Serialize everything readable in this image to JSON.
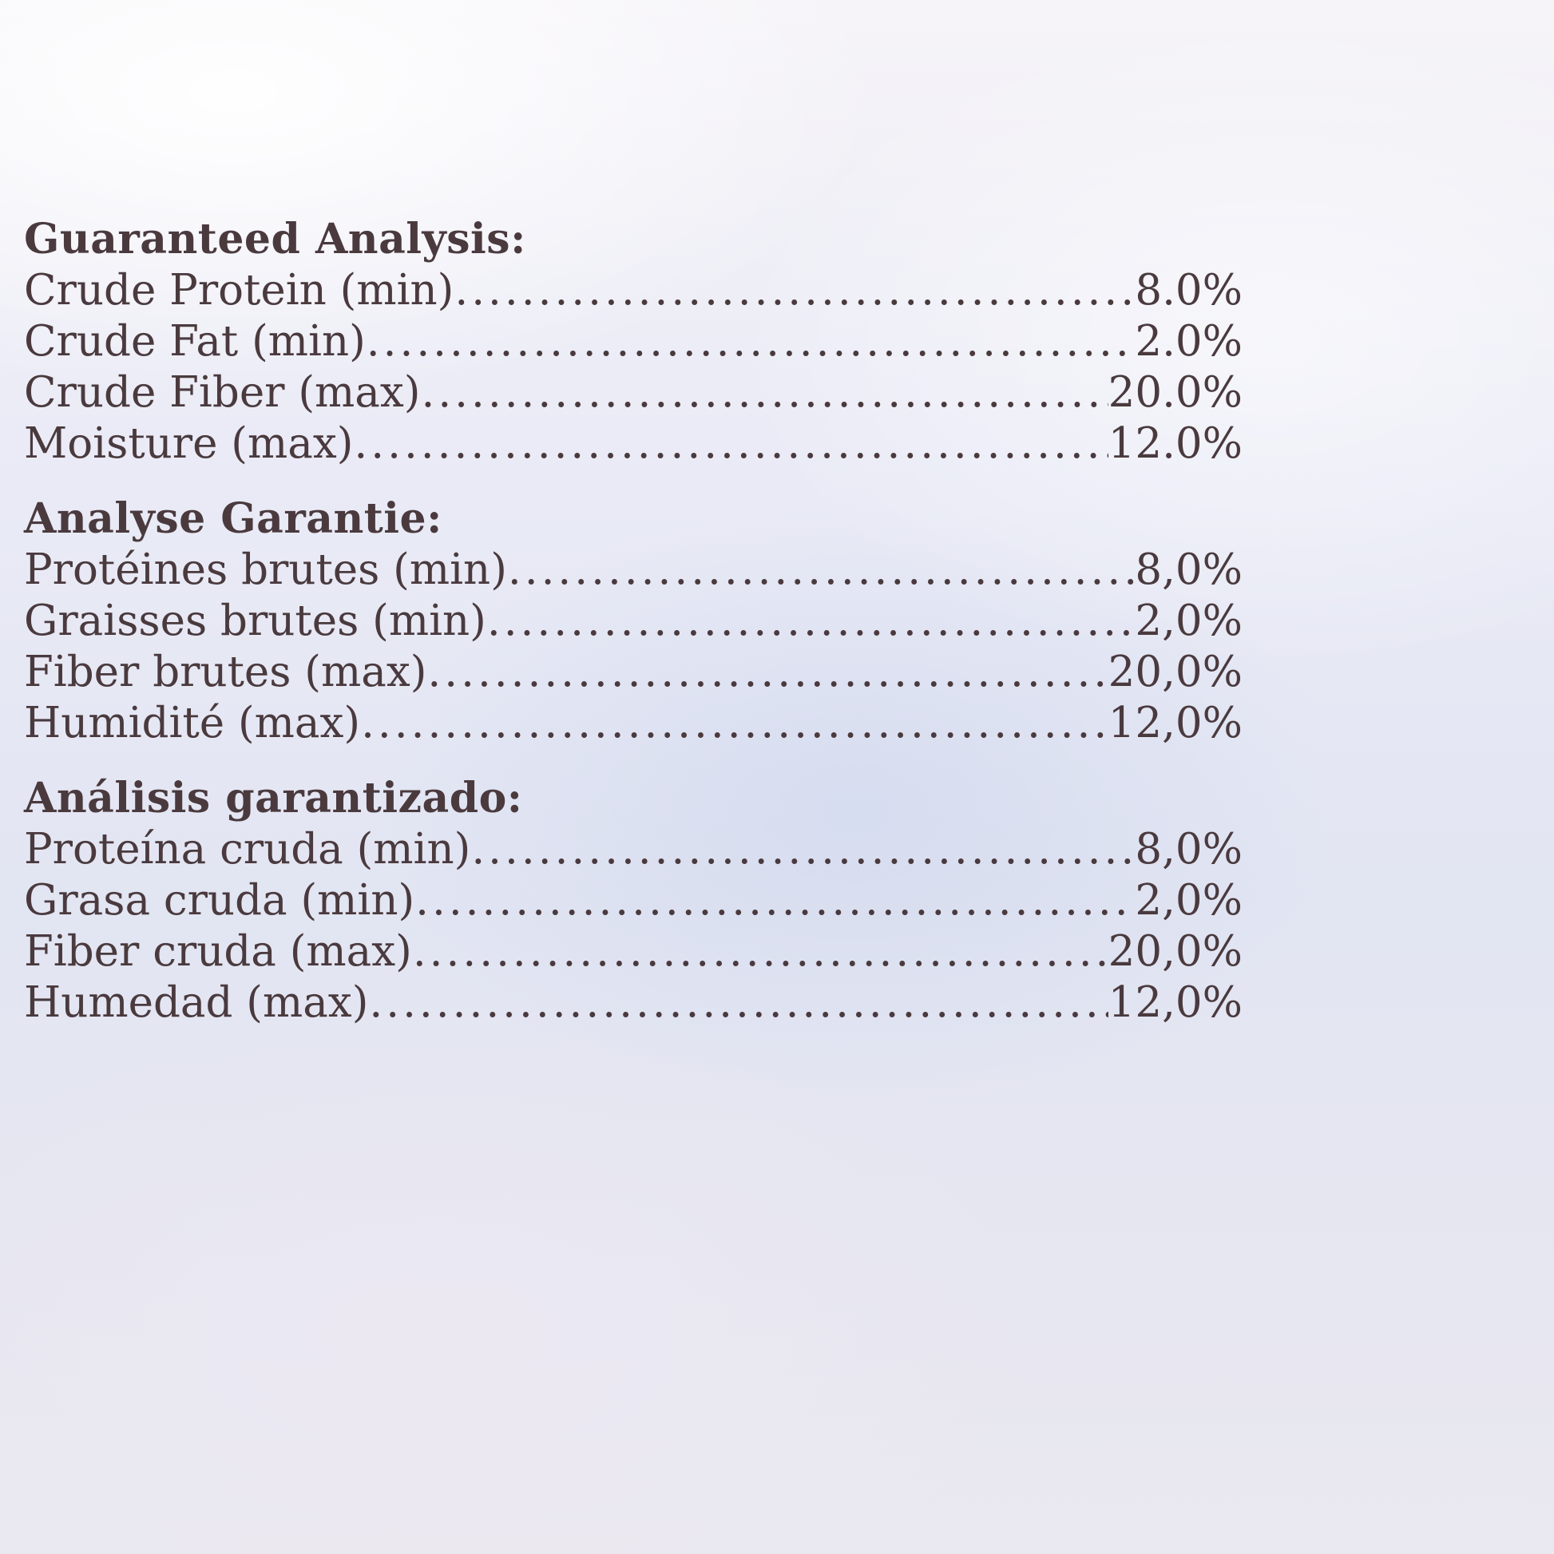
{
  "colors": {
    "text": "#4a3a3e",
    "background": "#e7e9f4"
  },
  "label": {
    "sections": [
      {
        "heading": "Guaranteed Analysis:",
        "rows": [
          {
            "label": "Crude Protein (min)",
            "value": "8.0%"
          },
          {
            "label": "Crude Fat (min)",
            "value": "2.0%"
          },
          {
            "label": "Crude Fiber (max)",
            "value": "20.0%"
          },
          {
            "label": "Moisture (max)",
            "value": "12.0%"
          }
        ]
      },
      {
        "heading": "Analyse Garantie:",
        "rows": [
          {
            "label": "Protéines brutes (min)",
            "value": "8,0%"
          },
          {
            "label": "Graisses brutes (min)",
            "value": "2,0%"
          },
          {
            "label": "Fiber brutes (max)",
            "value": "20,0%"
          },
          {
            "label": "Humidité (max)",
            "value": "12,0%"
          }
        ]
      },
      {
        "heading": "Análisis garantizado:",
        "rows": [
          {
            "label": "Proteína cruda (min)",
            "value": "8,0%"
          },
          {
            "label": "Grasa cruda (min)",
            "value": "2,0%"
          },
          {
            "label": "Fiber cruda (max)",
            "value": "20,0%"
          },
          {
            "label": "Humedad (max)",
            "value": "12,0%"
          }
        ]
      }
    ]
  }
}
